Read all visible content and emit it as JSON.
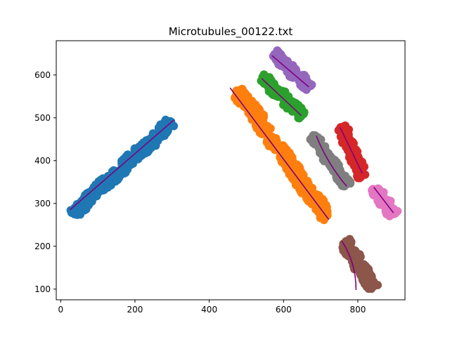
{
  "chart_data": {
    "type": "scatter",
    "title": "Microtubules_00122.txt",
    "xlabel": "",
    "ylabel": "",
    "xlim": [
      -12,
      927
    ],
    "ylim": [
      75,
      680
    ],
    "xticks": [
      0,
      200,
      400,
      600,
      800
    ],
    "yticks": [
      100,
      200,
      300,
      400,
      500,
      600
    ],
    "grid": false,
    "fit_line_color": "#800080",
    "series": [
      {
        "color": "#1f77b4",
        "halfwidth": 10,
        "fit_curvature": 0,
        "start": [
          30,
          275
        ],
        "end": [
          300,
          490
        ],
        "fit_start": [
          25,
          285
        ],
        "fit_end": [
          305,
          495
        ]
      },
      {
        "color": "#ff7f0e",
        "halfwidth": 12,
        "fit_curvature": 0,
        "start": [
          475,
          565
        ],
        "end": [
          718,
          265
        ],
        "fit_start": [
          456,
          570
        ],
        "fit_end": [
          722,
          262
        ]
      },
      {
        "color": "#2ca02c",
        "halfwidth": 9,
        "fit_curvature": 0,
        "start": [
          540,
          595
        ],
        "end": [
          650,
          505
        ],
        "fit_start": [
          541,
          592
        ],
        "fit_end": [
          648,
          505
        ]
      },
      {
        "color": "#d62728",
        "halfwidth": 9,
        "fit_curvature": 0,
        "start": [
          755,
          480
        ],
        "end": [
          815,
          360
        ],
        "fit_start": [
          752,
          478
        ],
        "fit_end": [
          812,
          370
        ]
      },
      {
        "color": "#9467bd",
        "halfwidth": 9,
        "fit_curvature": 0,
        "start": [
          575,
          650
        ],
        "end": [
          670,
          570
        ],
        "fit_start": [
          569,
          645
        ],
        "fit_end": [
          668,
          572
        ]
      },
      {
        "color": "#8c564b",
        "halfwidth": 10,
        "fit_curvature": -0.15,
        "start": [
          765,
          210
        ],
        "end": [
          843,
          102
        ],
        "fit_start": [
          757,
          212
        ],
        "fit_end": [
          795,
          98
        ]
      },
      {
        "color": "#e377c2",
        "halfwidth": 9,
        "fit_curvature": 0,
        "start": [
          845,
          337
        ],
        "end": [
          895,
          273
        ],
        "fit_start": [
          843,
          338
        ],
        "fit_end": [
          896,
          278
        ]
      },
      {
        "color": "#7f7f7f",
        "halfwidth": 9,
        "fit_curvature": 0.08,
        "start": [
          680,
          460
        ],
        "end": [
          770,
          340
        ],
        "fit_start": [
          688,
          458
        ],
        "fit_end": [
          770,
          340
        ]
      }
    ]
  }
}
